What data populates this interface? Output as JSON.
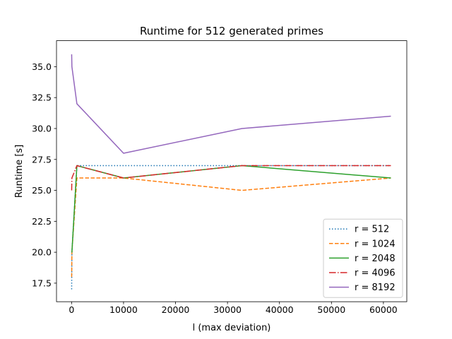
{
  "chart_data": {
    "type": "line",
    "title": "Runtime for 512 generated primes",
    "xlabel": "l (max deviation)",
    "ylabel": "Runtime [s]",
    "xlim": [
      -2900,
      64500
    ],
    "ylim": [
      16.0,
      37.1
    ],
    "xticks": [
      0,
      10000,
      20000,
      30000,
      40000,
      50000,
      60000
    ],
    "yticks": [
      17.5,
      20.0,
      22.5,
      25.0,
      27.5,
      30.0,
      32.5,
      35.0
    ],
    "grid": false,
    "legend_position": "lower-right",
    "x": [
      16,
      64,
      1024,
      10000,
      32768,
      61440
    ],
    "series": [
      {
        "name": "r = 512",
        "values": [
          17,
          20,
          27,
          27,
          27,
          27
        ],
        "color": "#1f77b4",
        "style": "dotted"
      },
      {
        "name": "r = 1024",
        "values": [
          18,
          20,
          26,
          26,
          25,
          26
        ],
        "color": "#ff7f0e",
        "style": "dashed"
      },
      {
        "name": "r = 2048",
        "values": [
          20,
          20,
          27,
          26,
          27,
          26
        ],
        "color": "#2ca02c",
        "style": "solid"
      },
      {
        "name": "r = 4096",
        "values": [
          25,
          26,
          27,
          26,
          27,
          27
        ],
        "color": "#d62728",
        "style": "dashdot"
      },
      {
        "name": "r = 8192",
        "values": [
          36,
          35,
          32,
          28,
          30,
          31
        ],
        "color": "#9467bd",
        "style": "solid"
      }
    ]
  }
}
